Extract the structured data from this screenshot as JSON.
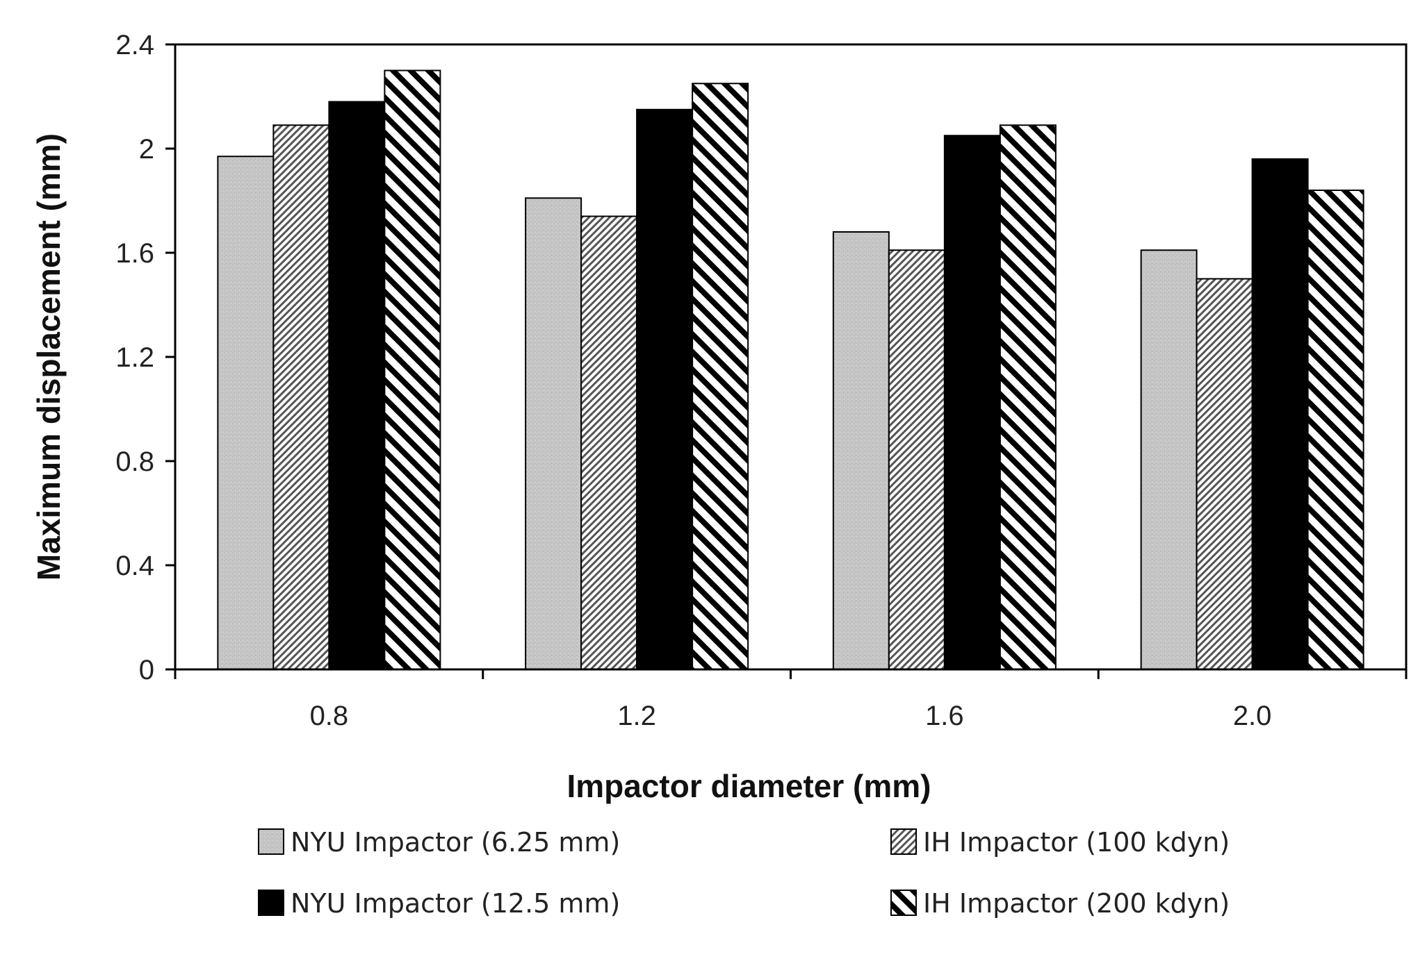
{
  "chart_data": {
    "type": "bar",
    "title": "",
    "xlabel": "Impactor diameter (mm)",
    "ylabel": "Maximum displacement (mm)",
    "categories": [
      "0.8",
      "1.2",
      "1.6",
      "2.0"
    ],
    "ylim": [
      0,
      2.4
    ],
    "yticks": [
      0,
      0.4,
      0.8,
      1.2,
      1.6,
      2,
      2.4
    ],
    "ytick_labels": [
      "0",
      "0.4",
      "0.8",
      "1.2",
      "1.6",
      "2",
      "2.4"
    ],
    "grid": false,
    "legend_position": "bottom",
    "series": [
      {
        "name": "NYU Impactor (6.25 mm)",
        "pattern": "stipple-gray",
        "values": [
          1.97,
          1.81,
          1.68,
          1.61
        ]
      },
      {
        "name": "IH Impactor (100 kdyn)",
        "pattern": "fine-hatch",
        "values": [
          2.09,
          1.74,
          1.61,
          1.5
        ]
      },
      {
        "name": "NYU Impactor (12.5 mm)",
        "pattern": "solid-black",
        "values": [
          2.18,
          2.15,
          2.05,
          1.96
        ]
      },
      {
        "name": "IH Impactor (200 kdyn)",
        "pattern": "wide-hatch",
        "values": [
          2.3,
          2.25,
          2.09,
          1.84
        ]
      }
    ],
    "colors": {
      "axis": "#000000",
      "gray": "#c8c8c8",
      "black": "#000000",
      "text": "#222222"
    }
  }
}
